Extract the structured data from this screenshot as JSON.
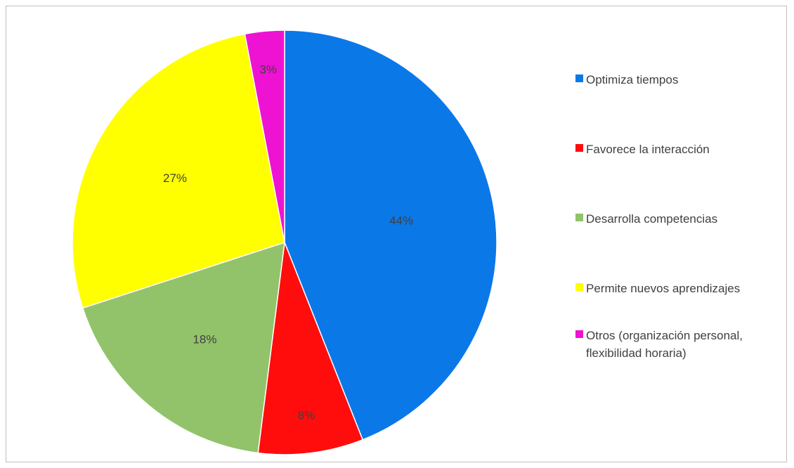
{
  "chart_data": {
    "type": "pie",
    "title": "",
    "slices": [
      {
        "label": "Optimiza tiempos",
        "value": 44,
        "display": "44%",
        "color": "#0B78E8"
      },
      {
        "label": "Favorece la interacción",
        "value": 8,
        "display": "8%",
        "color": "#FF0D0D"
      },
      {
        "label": "Desarrolla competencias",
        "value": 18,
        "display": "18%",
        "color": "#92C36A"
      },
      {
        "label": "Permite nuevos aprendizajes",
        "value": 27,
        "display": "27%",
        "color": "#FFFF00"
      },
      {
        "label": "Otros (organización personal, flexibilidad horaria)",
        "value": 3,
        "display": "3%",
        "color": "#EE12D3"
      }
    ],
    "legend_position": "right"
  }
}
